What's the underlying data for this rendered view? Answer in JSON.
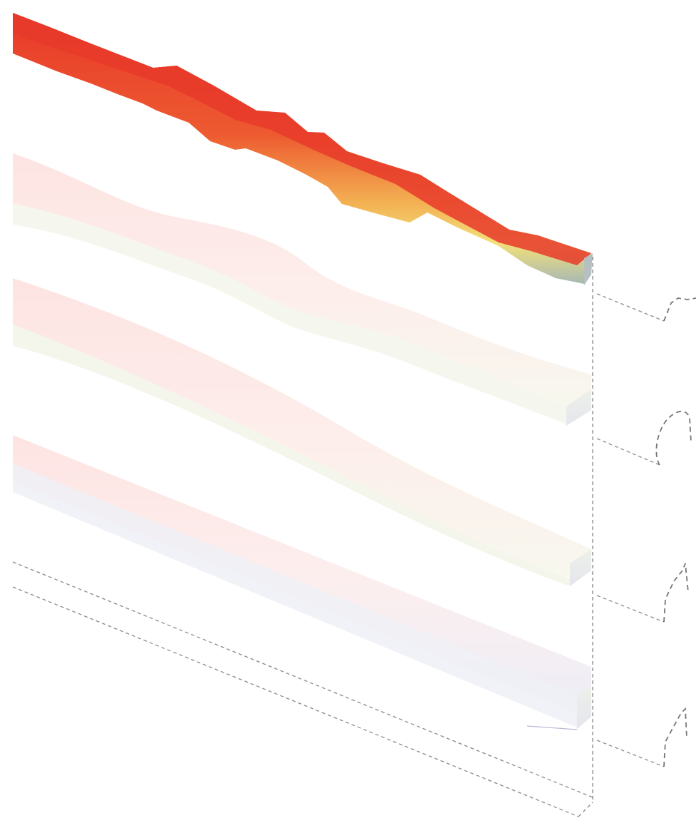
{
  "diagram": {
    "layers": [
      {
        "name": "terrain-layer-surface",
        "colors": {
          "top": "#e8392a",
          "mid": "#f08a3a",
          "band": "#f2e27a",
          "base": "#a9b8b4"
        }
      },
      {
        "name": "terrain-layer-2",
        "colors": {
          "top": "#fde6e4",
          "base": "#f7f8ee"
        }
      },
      {
        "name": "terrain-layer-3",
        "colors": {
          "top": "#fde6e4",
          "base": "#f6f7ec"
        }
      },
      {
        "name": "terrain-layer-4",
        "colors": {
          "top": "#fde6e4",
          "base": "#eeeef6"
        }
      }
    ],
    "colors": {
      "guide_line": "#8a8a8a",
      "background": "#ffffff"
    }
  }
}
